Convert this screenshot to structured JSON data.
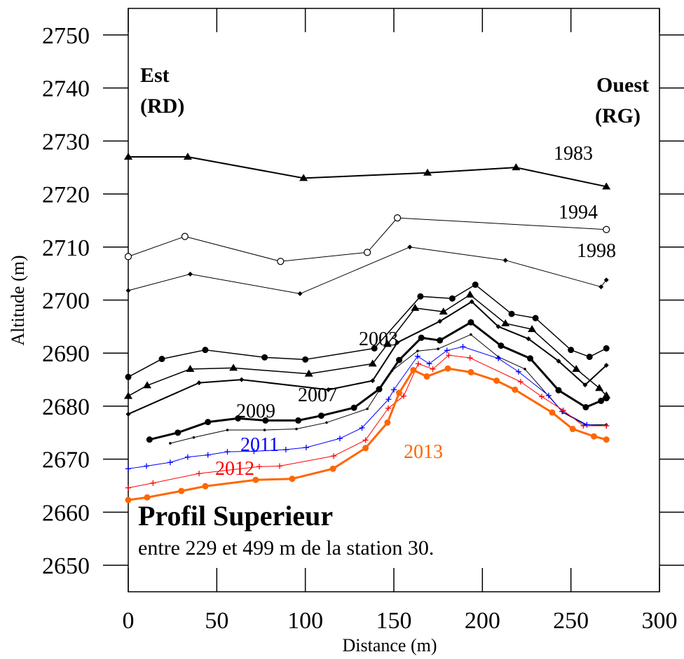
{
  "chart_data": {
    "type": "line",
    "xlabel": "Distance (m)",
    "ylabel": "Altitude (m)",
    "xlim": [
      0,
      300
    ],
    "ylim": [
      2645,
      2755
    ],
    "xticks": [
      0,
      50,
      100,
      150,
      200,
      250,
      300
    ],
    "yticks": [
      2650,
      2660,
      2670,
      2680,
      2690,
      2700,
      2710,
      2720,
      2730,
      2740,
      2750
    ],
    "annotations": {
      "left_title": "Est",
      "left_sub": "(RD)",
      "right_title": "Ouest",
      "right_sub": "(RG)",
      "profile": "Profil Superieur",
      "note": "entre 229 et 499 m de la station 30."
    },
    "series": [
      {
        "name": "1983",
        "color": "#000000",
        "marker": "triangle",
        "line_width": 2,
        "x": [
          0,
          33.6,
          99,
          169,
          219,
          270
        ],
        "values": [
          2727,
          2727,
          2723,
          2724,
          2725,
          2721.4
        ]
      },
      {
        "name": "1994",
        "color": "#000000",
        "marker": "circle-open",
        "line_width": 1,
        "x": [
          0,
          32,
          86,
          135,
          152,
          270
        ],
        "values": [
          2708.2,
          2712,
          2707.3,
          2709,
          2715.5,
          2713.3
        ]
      },
      {
        "name": "1998",
        "color": "#000000",
        "marker": "diamond",
        "line_width": 1,
        "x": [
          0,
          35,
          97,
          159,
          213,
          267,
          270
        ],
        "values": [
          2701.8,
          2704.9,
          2701.2,
          2710,
          2707.5,
          2702.5,
          2703.8
        ]
      },
      {
        "name": "2003",
        "color": "#000000",
        "marker": "circle",
        "line_width": 1.5,
        "x": [
          0,
          19,
          43.5,
          77,
          100,
          139,
          165,
          183,
          196,
          216.5,
          230,
          250,
          260.5,
          270
        ],
        "values": [
          2685.5,
          2688.9,
          2690.6,
          2689.2,
          2688.8,
          2690.9,
          2700.7,
          2700.3,
          2702.9,
          2697.4,
          2696.6,
          2690.6,
          2689.3,
          2690.9
        ]
      },
      {
        "color": "#000000",
        "marker": "triangle",
        "line_width": 1.5,
        "x": [
          0,
          10.7,
          35,
          59.4,
          102,
          138,
          146.4,
          162,
          178,
          193,
          213,
          228,
          253,
          266,
          270
        ],
        "values": [
          2681.9,
          2683.9,
          2687,
          2687.2,
          2686.1,
          2688,
          2691.7,
          2698.5,
          2697.8,
          2701,
          2695.6,
          2694.5,
          2687,
          2683.4,
          2682
        ]
      },
      {
        "name": "2007",
        "color": "#000000",
        "marker": "diamond",
        "line_width": 2,
        "x": [
          0,
          40,
          64,
          113,
          138,
          152,
          176,
          194,
          209,
          226,
          243,
          258,
          270
        ],
        "values": [
          2678.5,
          2684.4,
          2685,
          2683.1,
          2684.8,
          2692,
          2696,
          2699.7,
          2695,
          2692.7,
          2688.5,
          2684,
          2687.7
        ]
      },
      {
        "name": "2009",
        "color": "#000000",
        "marker": "circle",
        "line_width": 3,
        "x": [
          12,
          28,
          45,
          62,
          77.5,
          96,
          109,
          127.5,
          141.7,
          153,
          165.5,
          176,
          193.5,
          210.5,
          227,
          243,
          258.4,
          267,
          270
        ],
        "values": [
          2673.7,
          2675,
          2677,
          2677.7,
          2677.3,
          2677.3,
          2678.2,
          2679.7,
          2683.2,
          2688.7,
          2692.9,
          2692.4,
          2695.8,
          2691.4,
          2689,
          2683,
          2679.8,
          2681,
          2681.5
        ]
      },
      {
        "color": "#000000",
        "marker": "dot",
        "line_width": 1,
        "x": [
          23.7,
          37,
          56,
          77,
          95,
          112,
          135,
          149,
          163.4,
          175,
          193.5,
          209,
          224,
          245.5,
          258,
          270
        ],
        "values": [
          2673,
          2674.1,
          2675.5,
          2675.5,
          2675.7,
          2676.9,
          2679.5,
          2686.7,
          2690.4,
          2690.8,
          2693.5,
          2689.3,
          2687,
          2678.8,
          2676.5,
          2676.5
        ]
      },
      {
        "name": "2011",
        "color": "#0000ff",
        "marker": "plus",
        "line_width": 1,
        "x": [
          0,
          10.3,
          23.7,
          33.6,
          45,
          56,
          71,
          89,
          100.5,
          119.5,
          132,
          147,
          150,
          163.4,
          170,
          180,
          189,
          209,
          220.4,
          237.4,
          245,
          259,
          270
        ],
        "values": [
          2668.2,
          2668.7,
          2669.4,
          2670.4,
          2670.8,
          2671.4,
          2671.5,
          2671.8,
          2672.2,
          2673.9,
          2675.9,
          2681.3,
          2683.1,
          2689.4,
          2688,
          2690.5,
          2691.2,
          2689,
          2686.5,
          2682,
          2679,
          2676.5,
          2676.3
        ]
      },
      {
        "name": "2012",
        "color": "#ff0000",
        "marker": "plus",
        "line_width": 1,
        "x": [
          0,
          14,
          40,
          74,
          85.5,
          116,
          134,
          146.8,
          155.5,
          163.8,
          172,
          181,
          193,
          221.6,
          233.5,
          245.7,
          257,
          270
        ],
        "values": [
          2664.6,
          2665.5,
          2667.3,
          2668.6,
          2668.7,
          2670.6,
          2673.6,
          2679.6,
          2681.9,
          2688,
          2687,
          2689.6,
          2689.1,
          2684.6,
          2681.8,
          2679.2,
          2676.3,
          2676.3
        ]
      },
      {
        "name": "2013",
        "color": "#ff6600",
        "marker": "circle",
        "line_width": 3,
        "x": [
          0,
          10.7,
          30,
          43.5,
          72,
          92.6,
          115.6,
          134,
          146.4,
          153,
          161,
          168.6,
          180.5,
          193.5,
          208,
          218.4,
          239.4,
          251,
          263,
          270
        ],
        "values": [
          2662.3,
          2662.8,
          2664,
          2664.9,
          2666.1,
          2666.3,
          2668.2,
          2672.1,
          2676.9,
          2682.5,
          2686.8,
          2685.6,
          2687.1,
          2686.4,
          2684.8,
          2683.1,
          2678.8,
          2675.7,
          2674.3,
          2673.7
        ]
      }
    ]
  }
}
